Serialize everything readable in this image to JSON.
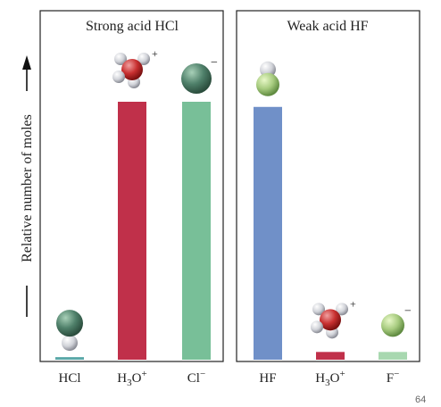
{
  "chart_data": [
    {
      "type": "bar",
      "title": "Strong acid HCl",
      "ylabel": "Relative number of moles",
      "ylim": [
        0,
        100
      ],
      "categories": [
        {
          "label": "HCl",
          "sup": "",
          "sub": ""
        },
        {
          "label": "H",
          "sub": "3",
          "label2": "O",
          "sup": "+"
        },
        {
          "label": "Cl",
          "sup": "−",
          "sub": ""
        }
      ],
      "values": [
        1,
        100,
        100
      ],
      "colors": [
        "#5aa8a8",
        "#c0304a",
        "#78bf98"
      ],
      "molecules": [
        "hcl-molecule",
        "hydronium-ion",
        "chloride-ion"
      ]
    },
    {
      "type": "bar",
      "title": "Weak acid HF",
      "ylim": [
        0,
        100
      ],
      "categories": [
        {
          "label": "HF",
          "sup": "",
          "sub": ""
        },
        {
          "label": "H",
          "sub": "3",
          "label2": "O",
          "sup": "+"
        },
        {
          "label": "F",
          "sup": "−",
          "sub": ""
        }
      ],
      "values": [
        98,
        3,
        3
      ],
      "colors": [
        "#7090c8",
        "#c0304a",
        "#a8d8b0"
      ],
      "molecules": [
        "hf-molecule",
        "hydronium-ion",
        "fluoride-ion"
      ]
    }
  ],
  "page_number": "64"
}
